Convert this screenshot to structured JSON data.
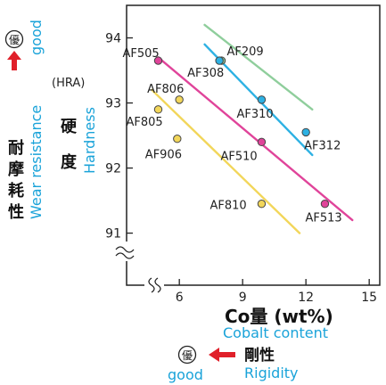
{
  "chart_data": {
    "type": "scatter",
    "xlabel": "Co量 (wt%)",
    "xlabel_en": "Cobalt content",
    "ylabel_jp_1": "耐摩耗性",
    "ylabel_en_1": "Wear resistance",
    "ylabel_unit": "(HRA)",
    "ylabel_jp_2": "硬度",
    "ylabel_en_2": "Hardness",
    "y_good_mark": "優",
    "y_good_label": "good",
    "x_good_mark": "優",
    "x_good_label": "good",
    "x_dir_jp": "剛性",
    "x_dir_en": "Rigidity",
    "xlim": [
      3.5,
      15.5
    ],
    "ylim": [
      90.2,
      94.5
    ],
    "x_ticks": [
      "6",
      "9",
      "12",
      "15"
    ],
    "y_ticks": [
      "91",
      "92",
      "93",
      "94"
    ],
    "points": [
      {
        "label": "AF505",
        "x": 5.0,
        "y": 93.65,
        "color": "#e0449a"
      },
      {
        "label": "AF209",
        "x": 8.0,
        "y": 93.65,
        "color": "#8fce9c"
      },
      {
        "label": "AF308",
        "x": 7.9,
        "y": 93.65,
        "color": "#2db1e3"
      },
      {
        "label": "AF806",
        "x": 6.0,
        "y": 93.05,
        "color": "#f2d65a"
      },
      {
        "label": "AF310",
        "x": 9.9,
        "y": 93.05,
        "color": "#2db1e3"
      },
      {
        "label": "AF805",
        "x": 5.0,
        "y": 92.9,
        "color": "#f2d65a"
      },
      {
        "label": "AF312",
        "x": 12.0,
        "y": 92.55,
        "color": "#2db1e3"
      },
      {
        "label": "AF906",
        "x": 5.9,
        "y": 92.45,
        "color": "#f2d65a"
      },
      {
        "label": "AF510",
        "x": 9.9,
        "y": 92.4,
        "color": "#e0449a"
      },
      {
        "label": "AF810",
        "x": 9.9,
        "y": 91.45,
        "color": "#f2d65a"
      },
      {
        "label": "AF513",
        "x": 12.9,
        "y": 91.45,
        "color": "#e0449a"
      }
    ],
    "trend_lines": [
      {
        "color": "#8fce9c",
        "x": [
          7.2,
          12.3
        ],
        "y": [
          94.2,
          92.9
        ]
      },
      {
        "color": "#2db1e3",
        "x": [
          7.2,
          12.3
        ],
        "y": [
          93.9,
          92.2
        ]
      },
      {
        "color": "#e0449a",
        "x": [
          5.0,
          14.2
        ],
        "y": [
          93.7,
          91.2
        ]
      },
      {
        "color": "#f2d65a",
        "x": [
          4.7,
          11.7
        ],
        "y": [
          93.2,
          91.0
        ]
      }
    ]
  }
}
